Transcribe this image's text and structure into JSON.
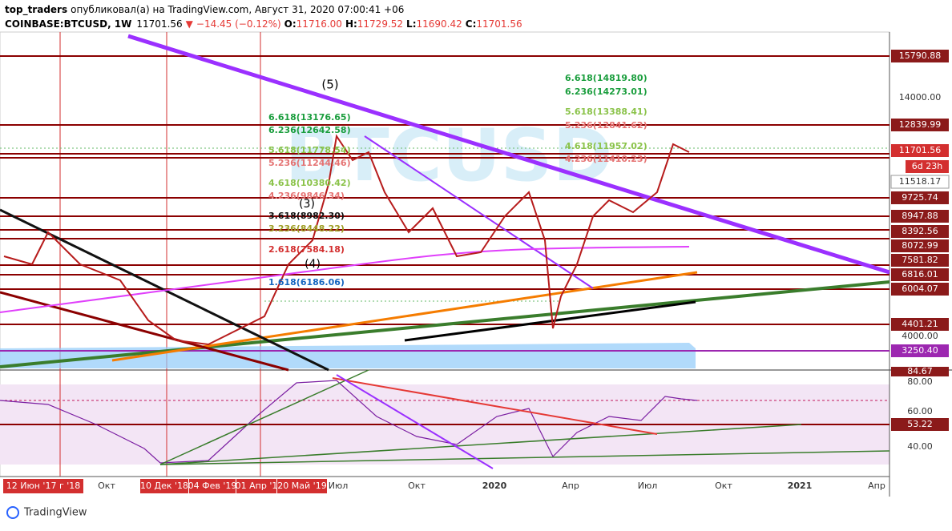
{
  "header": {
    "author": "top_traders",
    "published": "опубликовал(а) на TradingView.com, Август 31, 2020 07:00:41 +06",
    "symbol": "COINBASE:BTCUSD, 1W",
    "price": "11701.56",
    "change": "−14.45 (−0.12%)",
    "open_label": "O:",
    "open": "11716.00",
    "high_label": "H:",
    "high": "11729.52",
    "low_label": "L:",
    "low": "11690.42",
    "close_label": "C:",
    "close": "11701.56"
  },
  "watermark": "BTCUSD",
  "price_axis": [
    "15790.88",
    "14000.00",
    "12839.99",
    "11701.56",
    "6d 23h",
    "11518.17",
    "9725.74",
    "8947.88",
    "8392.56",
    "8072.99",
    "7581.82",
    "6816.01",
    "6004.07",
    "4401.21",
    "4000.00",
    "3250.40"
  ],
  "rsi_axis": [
    "84.67",
    "80.00",
    "60.00",
    "53.22",
    "40.00"
  ],
  "time_axis": [
    "12 Июн '17 г '18",
    "Окт",
    "10 Дек '18",
    "04 Фев '19",
    "01 Апр '1",
    "20 Май '19",
    "Июл",
    "Окт",
    "2020",
    "Апр",
    "Июл",
    "Окт",
    "2021",
    "Апр"
  ],
  "wave_labels": [
    "(5)",
    "(3)",
    "(4)"
  ],
  "fib_right": [
    "6.618(14819.80)",
    "6.236(14273.01)",
    "5.618(13388.41)",
    "5.236(12841.62)",
    "4.618(11957.02)",
    "4.236(11410.23)"
  ],
  "fib_left": [
    "6.618(13176.65)",
    "6.236(12642.58)",
    "5.618(11778.54)",
    "5.236(11244.46)",
    "4.618(10380.42)",
    "4.236(9846.34)",
    "3.618(8982.30)",
    "3.236(8448.22)",
    "2.618(7584.18)",
    "1.618(6186.06)"
  ],
  "footer": {
    "brand": "TradingView"
  }
}
